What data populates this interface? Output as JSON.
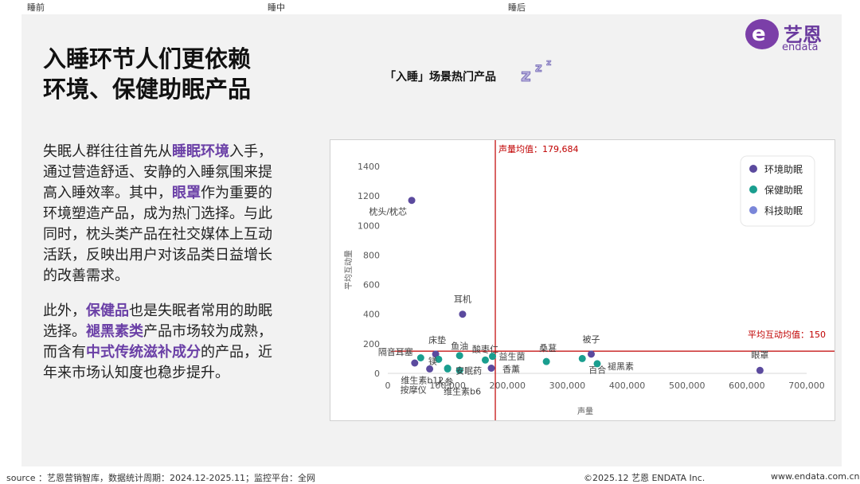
{
  "tabs": [
    "睡前",
    "睡中",
    "睡后"
  ],
  "brand": {
    "logo_mark": "e",
    "name_cn": "艺恩",
    "name_en": "endata"
  },
  "headline": {
    "line1": "入睡环节人们更依赖",
    "line2": "环境、保健助眠产品"
  },
  "paragraphs": [
    [
      {
        "text": "失眠人群往往首先从",
        "hl": false
      },
      {
        "text": "睡眠环境",
        "hl": true
      },
      {
        "text": "入手，通过营造舒适、安静的入睡氛围来提高入睡效率。其中，",
        "hl": false
      },
      {
        "text": "眼罩",
        "hl": true
      },
      {
        "text": "作为重要的环境塑造产品，成为热门选择。与此同时，枕头类产品在社交媒体上互动活跃，反映出用户对该品类日益增长的改善需求。",
        "hl": false
      }
    ],
    [
      {
        "text": "此外，",
        "hl": false
      },
      {
        "text": "保健品",
        "hl": true
      },
      {
        "text": "也是失眠者常用的助眠选择。",
        "hl": false
      },
      {
        "text": "褪黑素类",
        "hl": true
      },
      {
        "text": "产品市场较为成熟，而含有",
        "hl": false
      },
      {
        "text": "中式传统滋补成分",
        "hl": true
      },
      {
        "text": "的产品，近年来市场认知度也稳步提升。",
        "hl": false
      }
    ]
  ],
  "colors": {
    "accent": "#6a3fa6",
    "env": "#5b4a9e",
    "health": "#1a9e8f",
    "tech": "#7a86d9",
    "refline": "#c00000"
  },
  "chart_data": {
    "type": "scatter",
    "title": "「入睡」场景热门产品",
    "xlabel": "声量",
    "ylabel": "平均互动量",
    "xlim": [
      0,
      700000
    ],
    "ylim": [
      0,
      1400
    ],
    "x_ticks": [
      0,
      100000,
      200000,
      300000,
      400000,
      500000,
      600000,
      700000
    ],
    "x_tick_labels": [
      "0",
      "100,000",
      "200,000",
      "300,000",
      "400,000",
      "500,000",
      "600,000",
      "700,000"
    ],
    "y_ticks": [
      0,
      200,
      400,
      600,
      800,
      1000,
      1200,
      1400
    ],
    "y_tick_labels": [
      "0",
      "200",
      "400",
      "600",
      "800",
      "1000",
      "1200",
      "1400"
    ],
    "legend_position": "top-right",
    "ref_lines": {
      "x": {
        "value": 179684,
        "label": "声量均值：179,684"
      },
      "y": {
        "value": 150,
        "label": "平均互动均值：150"
      }
    },
    "series": [
      {
        "name": "环境助眠",
        "points": [
          {
            "label": "枕头/枕芯",
            "x": 40000,
            "y": 1170
          },
          {
            "label": "耳机",
            "x": 125000,
            "y": 400
          },
          {
            "label": "床垫",
            "x": 80000,
            "y": 130
          },
          {
            "label": "隔音耳塞",
            "x": 45000,
            "y": 70
          },
          {
            "label": "按摩仪",
            "x": 70000,
            "y": 30
          },
          {
            "label": "被子",
            "x": 340000,
            "y": 130
          },
          {
            "label": "眼罩",
            "x": 622000,
            "y": 20
          },
          {
            "label": "香薰",
            "x": 173000,
            "y": 35
          }
        ]
      },
      {
        "name": "保健助眠",
        "points": [
          {
            "label": "鱼油",
            "x": 120000,
            "y": 120
          },
          {
            "label": "酸枣仁",
            "x": 163000,
            "y": 90
          },
          {
            "label": "益生菌",
            "x": 175000,
            "y": 115
          },
          {
            "label": "安眠药",
            "x": 120000,
            "y": 20
          },
          {
            "label": "维生素b12",
            "x": 55000,
            "y": 105
          },
          {
            "label": "镁",
            "x": 85000,
            "y": 95
          },
          {
            "label": "维生素b6",
            "x": 100000,
            "y": 35
          },
          {
            "label": "桑葚",
            "x": 265000,
            "y": 80
          },
          {
            "label": "百合",
            "x": 325000,
            "y": 100
          },
          {
            "label": "人参",
            "x": 100000,
            "y": 30
          },
          {
            "label": "褪黑素",
            "x": 350000,
            "y": 65
          }
        ]
      },
      {
        "name": "科技助眠",
        "points": []
      }
    ]
  },
  "footer": {
    "source": "source ：艺恩营销智库，数据统计周期：2024.12-2025.11；监控平台：全网",
    "copyright": "©2025.12  艺恩 ENDATA Inc.",
    "site": "www.endata.com.cn"
  }
}
